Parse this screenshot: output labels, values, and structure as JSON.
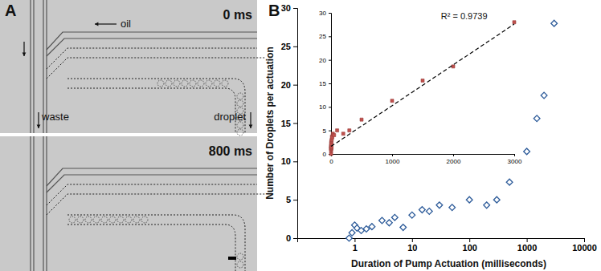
{
  "panel_a": {
    "label": "A",
    "frames": [
      "0 ms",
      "800 ms"
    ],
    "labels": [
      "oil",
      "waste",
      "droplet"
    ]
  },
  "chart_data": [
    {
      "type": "scatter",
      "title": "B",
      "x_label": "Duration of Pump Actuation (milliseconds)",
      "y_label": "Number of Droplets per actuation",
      "log": "x",
      "x": [
        0.8,
        0.9,
        1.0,
        1.1,
        1.3,
        1.6,
        2,
        3,
        4,
        5,
        7,
        10,
        15,
        20,
        30,
        50,
        100,
        200,
        300,
        500,
        1000,
        1500,
        2000,
        3000
      ],
      "series": [
        {
          "values": [
            0,
            0.7,
            1.7,
            1.3,
            1.0,
            1.2,
            1.5,
            2.3,
            2.0,
            2.7,
            1.4,
            3.0,
            3.7,
            3.5,
            4.3,
            4.0,
            5.0,
            4.3,
            5.0,
            7.3,
            11.3,
            15.6,
            18.6,
            28.0
          ],
          "color": "#2e5c9a",
          "marker": "diamond"
        }
      ],
      "xlim": [
        0.1,
        10000
      ],
      "xticks": [
        1,
        10,
        100,
        1000,
        10000
      ],
      "ylim": [
        0,
        30
      ],
      "yticks": [
        0,
        5,
        10,
        15,
        20,
        25,
        30
      ],
      "grid": false
    },
    {
      "type": "scatter",
      "annotation": "R² = 0.9739",
      "x": [
        0.8,
        0.9,
        1.0,
        1.1,
        1.3,
        1.6,
        2,
        3,
        4,
        5,
        7,
        10,
        15,
        20,
        30,
        50,
        100,
        200,
        300,
        500,
        1000,
        1500,
        2000,
        3000
      ],
      "series": [
        {
          "type": "scatter",
          "values": [
            0,
            0.7,
            1.7,
            1.3,
            1.0,
            1.2,
            1.5,
            2.3,
            2.0,
            2.7,
            1.4,
            3.0,
            3.7,
            3.5,
            4.3,
            4.0,
            5.0,
            4.3,
            5.0,
            7.3,
            11.3,
            15.6,
            18.6,
            28.0
          ],
          "color": "#c0504d",
          "marker": "square"
        },
        {
          "type": "line",
          "x": [
            0,
            3000
          ],
          "values": [
            1.6,
            27.6
          ],
          "color": "#000000",
          "line_style": "dashed"
        }
      ],
      "xlim": [
        0,
        3000
      ],
      "xticks": [
        0,
        1000,
        2000,
        3000
      ],
      "ylim": [
        0,
        30
      ],
      "yticks": [
        0,
        5,
        10,
        15,
        20,
        25,
        30
      ],
      "grid": false
    }
  ]
}
